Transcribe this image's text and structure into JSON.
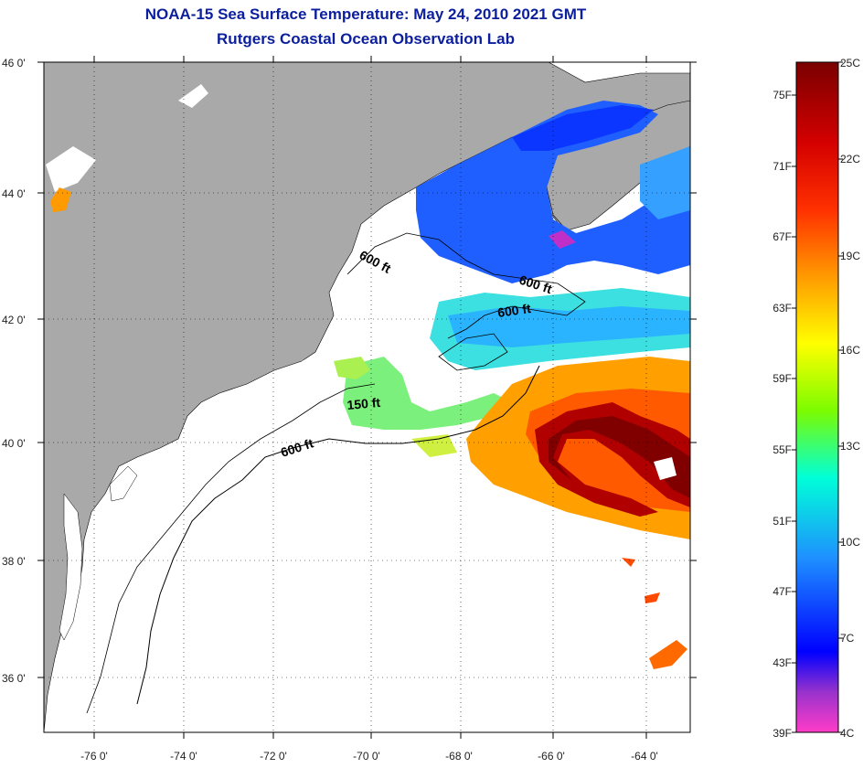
{
  "title_line1": "NOAA-15 Sea Surface Temperature:  May 24, 2010 2021 GMT",
  "title_line2": "Rutgers Coastal Ocean Observation Lab",
  "map": {
    "lon_ticks": [
      "-76 0'",
      "-74 0'",
      "-72 0'",
      "-70 0'",
      "-68 0'",
      "-66 0'",
      "-64 0'"
    ],
    "lat_ticks": [
      "46 0'",
      "44 0'",
      "42 0'",
      "40 0'",
      "38 0'",
      "36 0'"
    ],
    "isobath_labels": [
      "600 ft",
      "600 ft",
      "600 ft",
      "150 ft",
      "600 ft"
    ],
    "colors": {
      "land": "#a9a9a9",
      "cloud": "#ffffff"
    }
  },
  "colorbar": {
    "fahrenheit": [
      "75F",
      "71F",
      "67F",
      "63F",
      "59F",
      "55F",
      "51F",
      "47F",
      "43F",
      "39F"
    ],
    "celsius": [
      "25C",
      "22C",
      "19C",
      "16C",
      "13C",
      "10C",
      "7C",
      "4C"
    ],
    "colors": [
      "#7a0000",
      "#ff0000",
      "#ff8c00",
      "#ffff00",
      "#7cfc00",
      "#00ffe0",
      "#1e90ff",
      "#0000ff",
      "#9932cc",
      "#ff3cc8"
    ]
  }
}
